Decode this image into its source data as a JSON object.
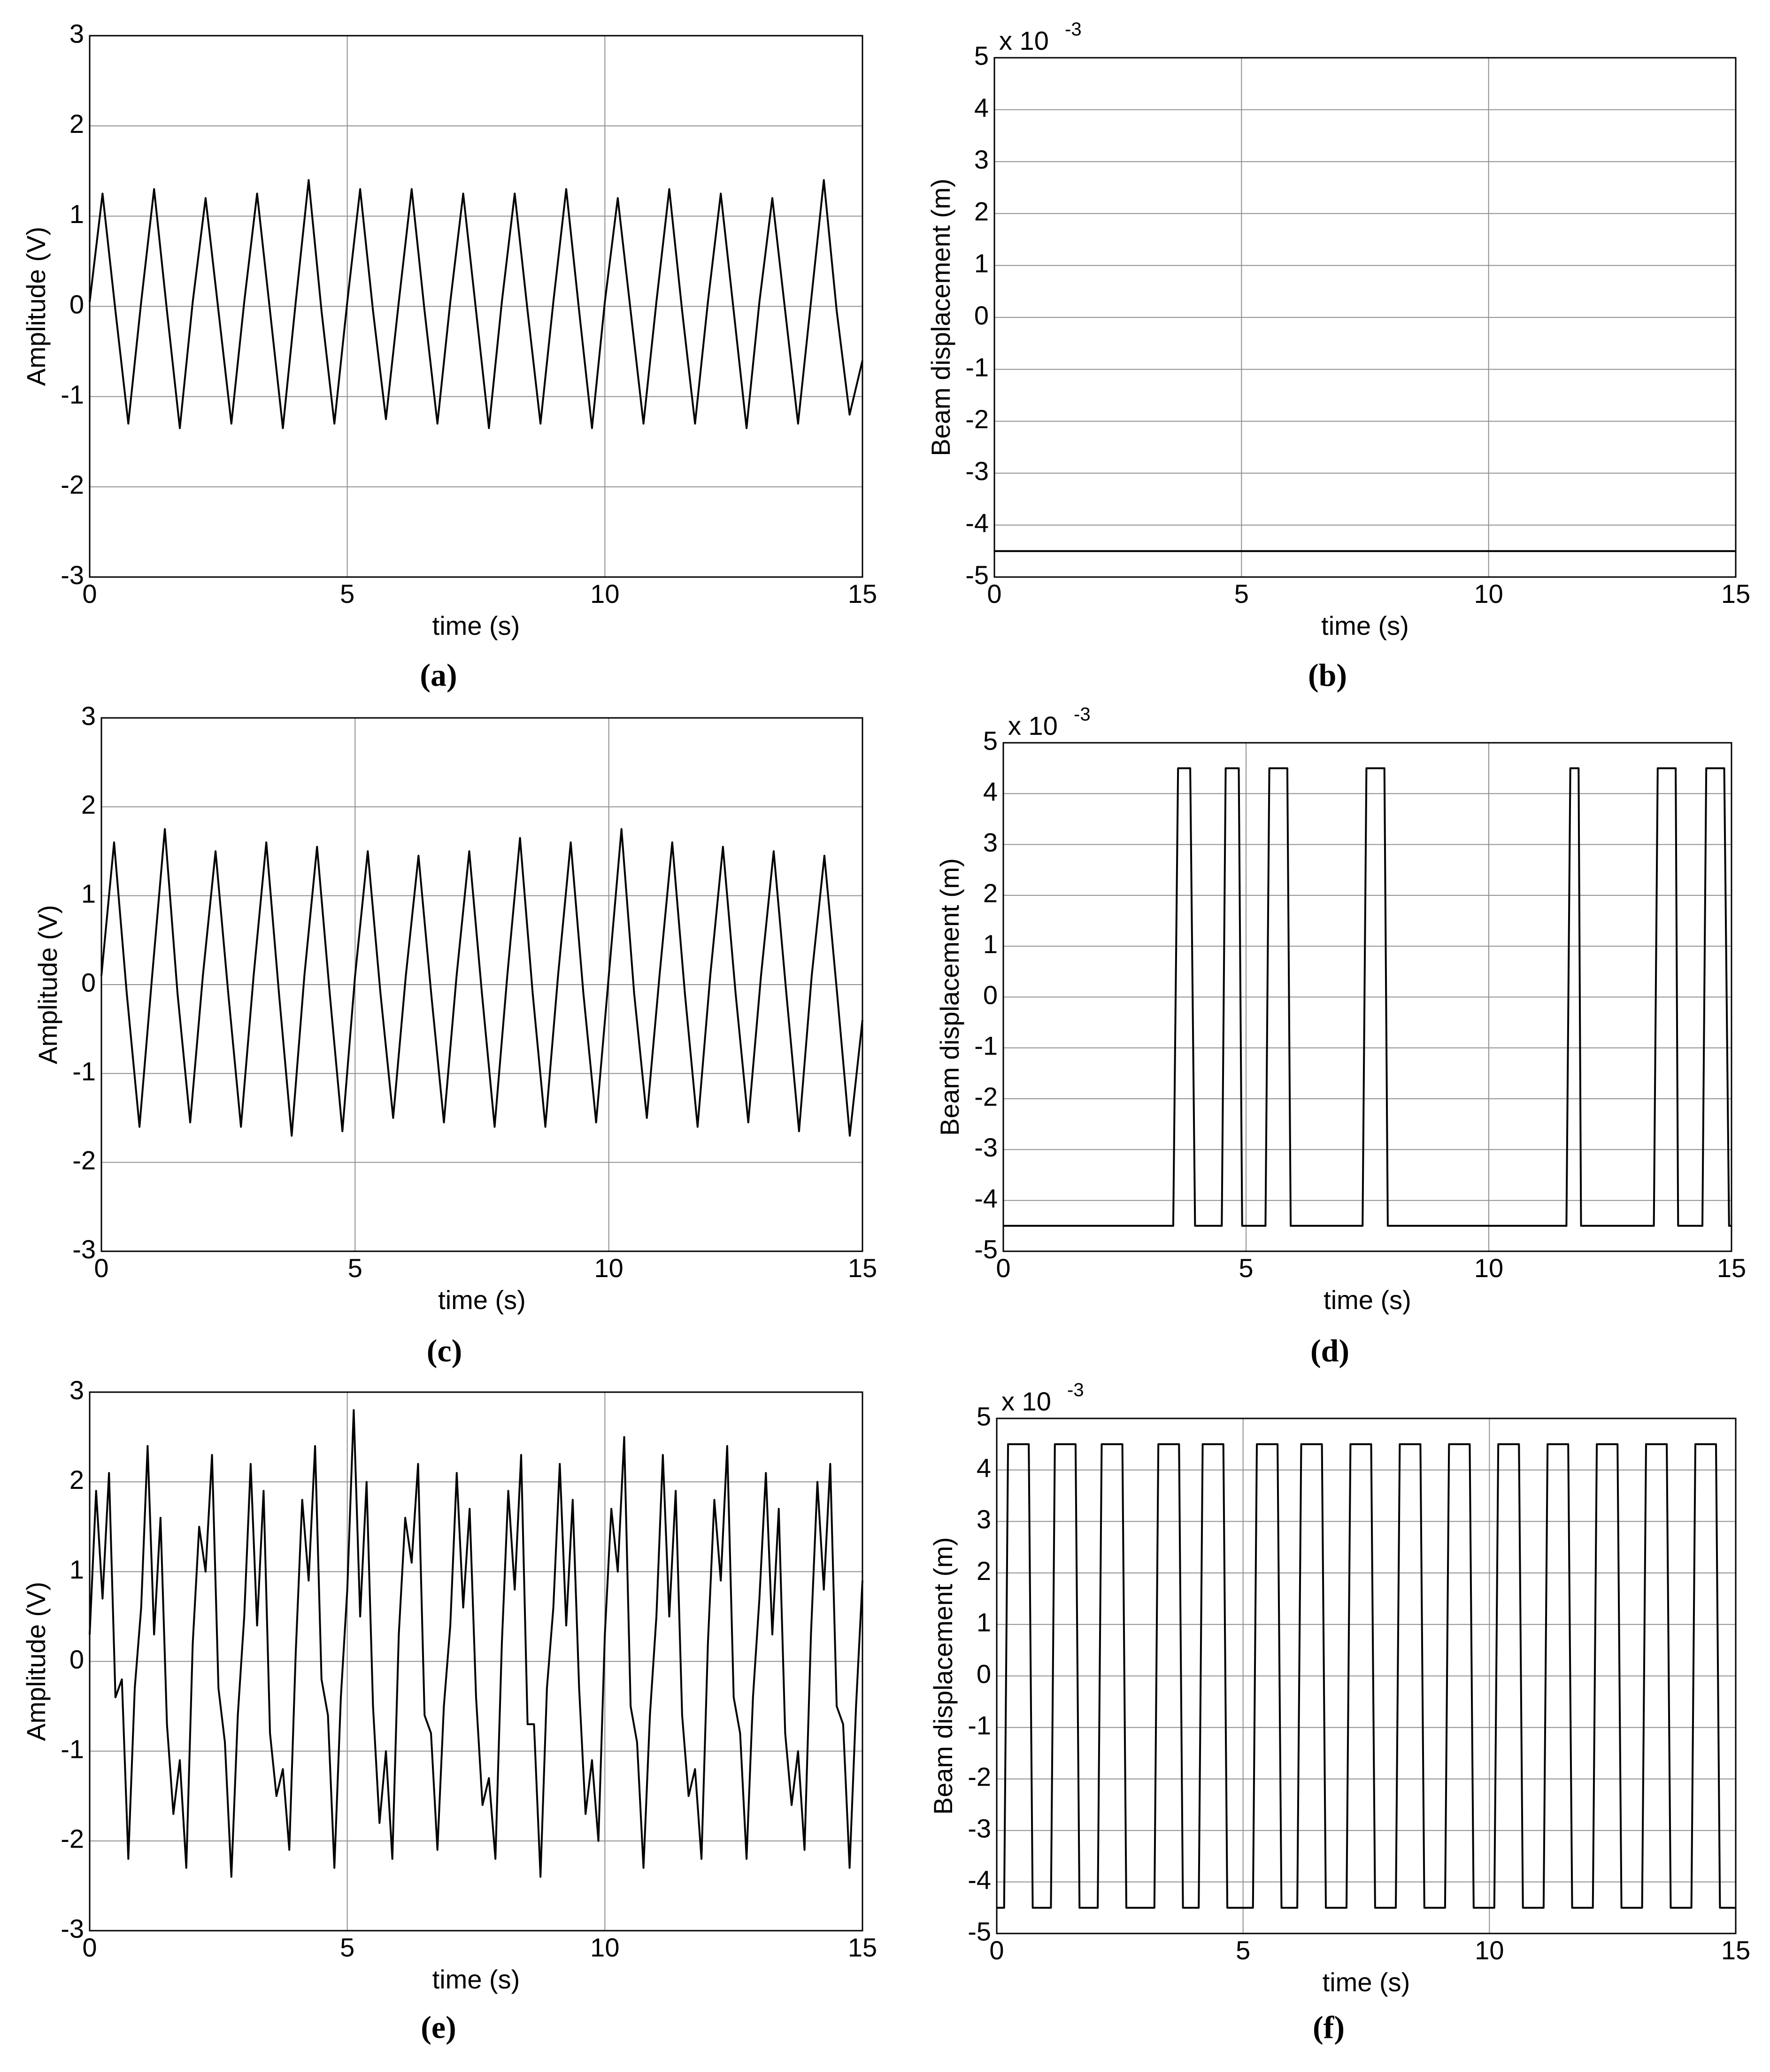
{
  "chart_data": [
    {
      "type": "line",
      "caption": "(a)",
      "xlabel": "time (s)",
      "ylabel": "Amplitude (V)",
      "color": "#000000",
      "grid": true,
      "xlim": [
        0,
        15
      ],
      "xticks": [
        0,
        5,
        10,
        15
      ],
      "ylim": [
        -3,
        3
      ],
      "yticks": [
        -3,
        -2,
        -1,
        0,
        1,
        2,
        3
      ],
      "x": [
        0,
        0.25,
        0.5,
        0.75,
        1,
        1.25,
        1.5,
        1.75,
        2,
        2.25,
        2.5,
        2.75,
        3,
        3.25,
        3.5,
        3.75,
        4,
        4.25,
        4.5,
        4.75,
        5,
        5.25,
        5.5,
        5.75,
        6,
        6.25,
        6.5,
        6.75,
        7,
        7.25,
        7.5,
        7.75,
        8,
        8.25,
        8.5,
        8.75,
        9,
        9.25,
        9.5,
        9.75,
        10,
        10.25,
        10.5,
        10.75,
        11,
        11.25,
        11.5,
        11.75,
        12,
        12.25,
        12.5,
        12.75,
        13,
        13.25,
        13.5,
        13.75,
        14,
        14.25,
        14.5,
        14.75,
        15
      ],
      "values": [
        0.05,
        1.25,
        -0.05,
        -1.3,
        0.05,
        1.3,
        -0.05,
        -1.35,
        0.05,
        1.2,
        -0.05,
        -1.3,
        0.05,
        1.25,
        -0.05,
        -1.35,
        0.05,
        1.4,
        -0.05,
        -1.3,
        0.05,
        1.3,
        -0.05,
        -1.25,
        0.05,
        1.3,
        -0.05,
        -1.3,
        0.05,
        1.25,
        -0.05,
        -1.35,
        0.05,
        1.25,
        -0.05,
        -1.3,
        0.05,
        1.3,
        -0.05,
        -1.35,
        0.05,
        1.2,
        -0.05,
        -1.3,
        0.05,
        1.3,
        -0.05,
        -1.3,
        0.05,
        1.25,
        -0.05,
        -1.35,
        0.05,
        1.2,
        -0.05,
        -1.3,
        0.05,
        1.4,
        -0.05,
        -1.2,
        -0.6
      ]
    },
    {
      "type": "line",
      "caption": "(b)",
      "xlabel": "time (s)",
      "ylabel": "Beam displacement (m)",
      "y_exponent_base": "x 10",
      "y_exponent": "-3",
      "color": "#000000",
      "grid": true,
      "xlim": [
        0,
        15
      ],
      "xticks": [
        0,
        5,
        10,
        15
      ],
      "ylim": [
        -5,
        5
      ],
      "yticks": [
        -5,
        -4,
        -3,
        -2,
        -1,
        0,
        1,
        2,
        3,
        4,
        5
      ],
      "x": [
        0,
        15
      ],
      "values": [
        -4.5,
        -4.5
      ]
    },
    {
      "type": "line",
      "caption": "(c)",
      "xlabel": "time (s)",
      "ylabel": "Amplitude (V)",
      "color": "#000000",
      "grid": true,
      "xlim": [
        0,
        15
      ],
      "xticks": [
        0,
        5,
        10,
        15
      ],
      "ylim": [
        -3,
        3
      ],
      "yticks": [
        -3,
        -2,
        -1,
        0,
        1,
        2,
        3
      ],
      "x": [
        0,
        0.25,
        0.5,
        0.75,
        1,
        1.25,
        1.5,
        1.75,
        2,
        2.25,
        2.5,
        2.75,
        3,
        3.25,
        3.5,
        3.75,
        4,
        4.25,
        4.5,
        4.75,
        5,
        5.25,
        5.5,
        5.75,
        6,
        6.25,
        6.5,
        6.75,
        7,
        7.25,
        7.5,
        7.75,
        8,
        8.25,
        8.5,
        8.75,
        9,
        9.25,
        9.5,
        9.75,
        10,
        10.25,
        10.5,
        10.75,
        11,
        11.25,
        11.5,
        11.75,
        12,
        12.25,
        12.5,
        12.75,
        13,
        13.25,
        13.5,
        13.75,
        14,
        14.25,
        14.5,
        14.75,
        15
      ],
      "values": [
        0.1,
        1.6,
        -0.1,
        -1.6,
        0.1,
        1.75,
        -0.1,
        -1.55,
        0.1,
        1.5,
        -0.1,
        -1.6,
        0.1,
        1.6,
        -0.1,
        -1.7,
        0.1,
        1.55,
        -0.1,
        -1.65,
        0.1,
        1.5,
        -0.1,
        -1.5,
        0.1,
        1.45,
        -0.1,
        -1.55,
        0.1,
        1.5,
        -0.1,
        -1.6,
        0.1,
        1.65,
        -0.1,
        -1.6,
        0.1,
        1.6,
        -0.1,
        -1.55,
        0.1,
        1.75,
        -0.1,
        -1.5,
        0.1,
        1.6,
        -0.1,
        -1.6,
        0.1,
        1.55,
        -0.1,
        -1.55,
        0.1,
        1.5,
        -0.1,
        -1.65,
        0.1,
        1.45,
        -0.1,
        -1.7,
        -0.4
      ]
    },
    {
      "type": "line",
      "caption": "(d)",
      "xlabel": "time (s)",
      "ylabel": "Beam displacement (m)",
      "y_exponent_base": "x 10",
      "y_exponent": "-3",
      "color": "#000000",
      "grid": true,
      "xlim": [
        0,
        15
      ],
      "xticks": [
        0,
        5,
        10,
        15
      ],
      "ylim": [
        -5,
        5
      ],
      "yticks": [
        -5,
        -4,
        -3,
        -2,
        -1,
        0,
        1,
        2,
        3,
        4,
        5
      ],
      "x": [
        0,
        3.5,
        3.6,
        3.85,
        3.95,
        4.5,
        4.58,
        4.85,
        4.92,
        5.4,
        5.48,
        5.85,
        5.92,
        7.4,
        7.48,
        7.85,
        7.92,
        11.6,
        11.68,
        11.85,
        11.9,
        13.4,
        13.48,
        13.85,
        13.9,
        14.4,
        14.48,
        14.85,
        14.95,
        15
      ],
      "values": [
        -4.5,
        -4.5,
        4.5,
        4.5,
        -4.5,
        -4.5,
        4.5,
        4.5,
        -4.5,
        -4.5,
        4.5,
        4.5,
        -4.5,
        -4.5,
        4.5,
        4.5,
        -4.5,
        -4.5,
        4.5,
        4.5,
        -4.5,
        -4.5,
        4.5,
        4.5,
        -4.5,
        -4.5,
        4.5,
        4.5,
        -4.5,
        -4.5
      ]
    },
    {
      "type": "line",
      "caption": "(e)",
      "xlabel": "time (s)",
      "ylabel": "Amplitude (V)",
      "color": "#000000",
      "grid": true,
      "xlim": [
        0,
        15
      ],
      "xticks": [
        0,
        5,
        10,
        15
      ],
      "ylim": [
        -3,
        3
      ],
      "yticks": [
        -3,
        -2,
        -1,
        0,
        1,
        2,
        3
      ],
      "x": [
        0,
        0.125,
        0.25,
        0.375,
        0.5,
        0.625,
        0.75,
        0.875,
        1,
        1.125,
        1.25,
        1.375,
        1.5,
        1.625,
        1.75,
        1.875,
        2,
        2.125,
        2.25,
        2.375,
        2.5,
        2.625,
        2.75,
        2.875,
        3,
        3.125,
        3.25,
        3.375,
        3.5,
        3.625,
        3.75,
        3.875,
        4,
        4.125,
        4.25,
        4.375,
        4.5,
        4.625,
        4.75,
        4.875,
        5,
        5.125,
        5.25,
        5.375,
        5.5,
        5.625,
        5.75,
        5.875,
        6,
        6.125,
        6.25,
        6.375,
        6.5,
        6.625,
        6.75,
        6.875,
        7,
        7.125,
        7.25,
        7.375,
        7.5,
        7.625,
        7.75,
        7.875,
        8,
        8.125,
        8.25,
        8.375,
        8.5,
        8.625,
        8.75,
        8.875,
        9,
        9.125,
        9.25,
        9.375,
        9.5,
        9.625,
        9.75,
        9.875,
        10,
        10.125,
        10.25,
        10.375,
        10.5,
        10.625,
        10.75,
        10.875,
        11,
        11.125,
        11.25,
        11.375,
        11.5,
        11.625,
        11.75,
        11.875,
        12,
        12.125,
        12.25,
        12.375,
        12.5,
        12.625,
        12.75,
        12.875,
        13,
        13.125,
        13.25,
        13.375,
        13.5,
        13.625,
        13.75,
        13.875,
        14,
        14.125,
        14.25,
        14.375,
        14.5,
        14.625,
        14.75,
        14.875,
        15
      ],
      "values": [
        0.3,
        1.9,
        0.7,
        2.1,
        -0.4,
        -0.2,
        -2.2,
        -0.3,
        0.6,
        2.4,
        0.3,
        1.6,
        -0.7,
        -1.7,
        -1.1,
        -2.3,
        0.2,
        1.5,
        1.0,
        2.3,
        -0.3,
        -0.9,
        -2.4,
        -0.6,
        0.5,
        2.2,
        0.4,
        1.9,
        -0.8,
        -1.5,
        -1.2,
        -2.1,
        0.1,
        1.8,
        0.9,
        2.4,
        -0.2,
        -0.6,
        -2.3,
        -0.4,
        0.8,
        2.8,
        0.5,
        2.0,
        -0.5,
        -1.8,
        -1.0,
        -2.2,
        0.3,
        1.6,
        1.1,
        2.2,
        -0.6,
        -0.8,
        -2.1,
        -0.5,
        0.4,
        2.1,
        0.6,
        1.7,
        -0.4,
        -1.6,
        -1.3,
        -2.2,
        0.2,
        1.9,
        0.8,
        2.3,
        -0.7,
        -0.7,
        -2.4,
        -0.3,
        0.6,
        2.2,
        0.4,
        1.8,
        -0.3,
        -1.7,
        -1.1,
        -2.0,
        0.3,
        1.7,
        1.0,
        2.5,
        -0.5,
        -0.9,
        -2.3,
        -0.6,
        0.5,
        2.3,
        0.5,
        1.9,
        -0.6,
        -1.5,
        -1.2,
        -2.2,
        0.2,
        1.8,
        0.9,
        2.4,
        -0.4,
        -0.8,
        -2.2,
        -0.4,
        0.7,
        2.1,
        0.3,
        1.7,
        -0.8,
        -1.6,
        -1.0,
        -2.1,
        0.3,
        2.0,
        0.8,
        2.2,
        -0.5,
        -0.7,
        -2.3,
        -0.5,
        0.9
      ]
    },
    {
      "type": "line",
      "caption": "(f)",
      "xlabel": "time (s)",
      "ylabel": "Beam displacement (m)",
      "y_exponent_base": "x 10",
      "y_exponent": "-3",
      "color": "#000000",
      "grid": true,
      "xlim": [
        0,
        15
      ],
      "xticks": [
        0,
        5,
        10,
        15
      ],
      "ylim": [
        -5,
        5
      ],
      "yticks": [
        -5,
        -4,
        -3,
        -2,
        -1,
        0,
        1,
        2,
        3,
        4,
        5
      ],
      "x": [
        0,
        0.15,
        0.23,
        0.65,
        0.73,
        1.1,
        1.18,
        1.6,
        1.68,
        2.05,
        2.13,
        2.55,
        2.63,
        3.2,
        3.28,
        3.7,
        3.78,
        4.1,
        4.18,
        4.6,
        4.68,
        5.2,
        5.28,
        5.7,
        5.78,
        6.1,
        6.18,
        6.6,
        6.68,
        7.1,
        7.18,
        7.6,
        7.68,
        8.1,
        8.18,
        8.6,
        8.68,
        9.1,
        9.18,
        9.6,
        9.68,
        10.1,
        10.18,
        10.6,
        10.68,
        11.1,
        11.18,
        11.6,
        11.68,
        12.1,
        12.18,
        12.6,
        12.68,
        13.1,
        13.18,
        13.6,
        13.68,
        14.1,
        14.18,
        14.6,
        14.68,
        15
      ],
      "values": [
        -4.5,
        -4.5,
        4.5,
        4.5,
        -4.5,
        -4.5,
        4.5,
        4.5,
        -4.5,
        -4.5,
        4.5,
        4.5,
        -4.5,
        -4.5,
        4.5,
        4.5,
        -4.5,
        -4.5,
        4.5,
        4.5,
        -4.5,
        -4.5,
        4.5,
        4.5,
        -4.5,
        -4.5,
        4.5,
        4.5,
        -4.5,
        -4.5,
        4.5,
        4.5,
        -4.5,
        -4.5,
        4.5,
        4.5,
        -4.5,
        -4.5,
        4.5,
        4.5,
        -4.5,
        -4.5,
        4.5,
        4.5,
        -4.5,
        -4.5,
        4.5,
        4.5,
        -4.5,
        -4.5,
        4.5,
        4.5,
        -4.5,
        -4.5,
        4.5,
        4.5,
        -4.5,
        -4.5,
        4.5,
        4.5,
        -4.5,
        -4.5
      ]
    }
  ]
}
